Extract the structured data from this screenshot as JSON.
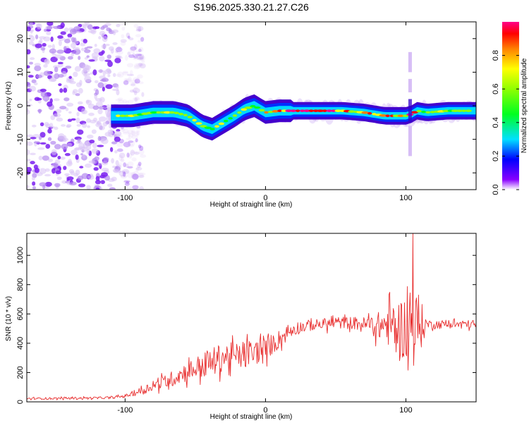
{
  "title": "S196.2025.330.21.27.C26",
  "chart_data": [
    {
      "type": "heatmap",
      "name": "spectrogram",
      "xlabel": "Height of straight line (km)",
      "ylabel": "Frequency (Hz)",
      "xlim": [
        -170,
        150
      ],
      "ylim": [
        -25,
        25
      ],
      "xticks": [
        -100,
        0,
        100
      ],
      "yticks": [
        -20,
        -10,
        0,
        10,
        20
      ],
      "colorbar": {
        "label": "Normalized spectral amplitude",
        "range": [
          0,
          1
        ],
        "ticks": [
          "0.0",
          "0.2",
          "0.4",
          "0.6",
          "0.8"
        ]
      },
      "ridge": {
        "description": "frequency of main spectral ridge vs height",
        "x": [
          -110,
          -95,
          -80,
          -65,
          -55,
          -45,
          -38,
          -30,
          -22,
          -15,
          -8,
          -4,
          0,
          10,
          25,
          40,
          55,
          70,
          85,
          100,
          104,
          108,
          115,
          130,
          150
        ],
        "y": [
          -3,
          -3,
          -2,
          -2,
          -3,
          -6,
          -7,
          -5,
          -3,
          -1,
          0,
          -1,
          -2,
          -1.5,
          -1.5,
          -1.5,
          -1.5,
          -2,
          -3,
          -3,
          -2.5,
          -1.5,
          -2,
          -1.5,
          -1.5
        ]
      },
      "noise_region": {
        "x_start": -170,
        "x_end": -95,
        "y_start": -25,
        "y_end": 25
      },
      "artifact": {
        "x": 103,
        "y_range": [
          -16,
          16
        ]
      }
    },
    {
      "type": "line",
      "name": "snr",
      "xlabel": "Height of straight line (km)",
      "ylabel": "SNR (10 * v/v)",
      "xlim": [
        -170,
        150
      ],
      "ylim": [
        0,
        1150
      ],
      "xticks": [
        -100,
        0,
        100
      ],
      "yticks": [
        0,
        200,
        400,
        600,
        800,
        1000
      ],
      "color": "#e83030",
      "envelope": {
        "x": [
          -170,
          -110,
          -100,
          -90,
          -80,
          -70,
          -60,
          -50,
          -40,
          -30,
          -20,
          -10,
          0,
          10,
          20,
          30,
          40,
          50,
          60,
          70,
          80,
          90,
          95,
          100,
          105,
          110,
          115,
          130,
          150
        ],
        "mean": [
          22,
          28,
          40,
          70,
          110,
          140,
          190,
          230,
          260,
          310,
          310,
          330,
          360,
          430,
          500,
          520,
          530,
          540,
          540,
          530,
          520,
          520,
          510,
          500,
          500,
          520,
          530,
          530,
          530
        ],
        "spread": [
          10,
          10,
          15,
          35,
          50,
          70,
          90,
          110,
          140,
          140,
          130,
          130,
          110,
          90,
          70,
          55,
          55,
          60,
          60,
          70,
          130,
          220,
          280,
          320,
          380,
          280,
          40,
          40,
          40
        ]
      },
      "peak": {
        "x": 105,
        "y": 1150
      }
    }
  ]
}
